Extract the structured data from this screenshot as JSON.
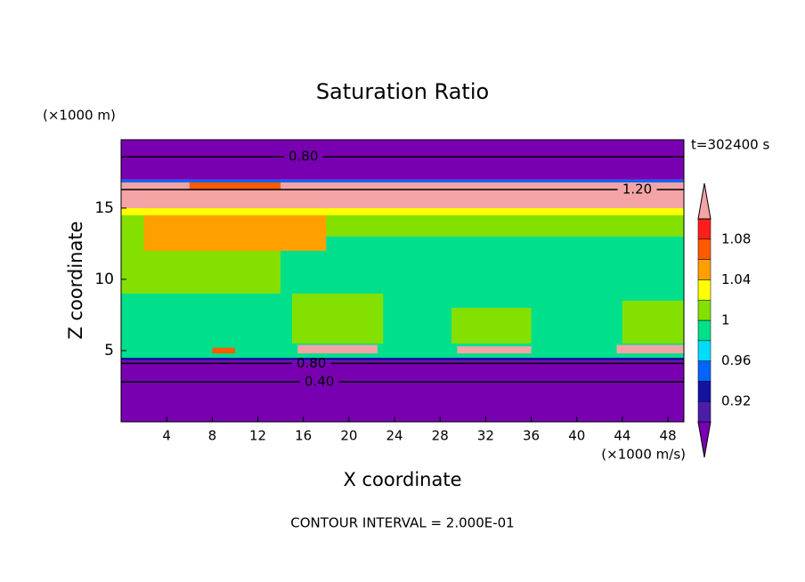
{
  "chart_data": {
    "type": "contour",
    "title": "Saturation Ratio",
    "subtitle": "t=302400 s",
    "x_label": "X coordinate",
    "y_label": "Z coordinate",
    "x_unit": "(×1000 m/s)",
    "y_unit": "(×1000 m)",
    "footer": "CONTOUR INTERVAL = 2.000E-01",
    "xlim": [
      0,
      49.4
    ],
    "ylim": [
      0,
      19.8
    ],
    "xticks": [
      4,
      8,
      12,
      16,
      20,
      24,
      28,
      32,
      36,
      40,
      44,
      48
    ],
    "yticks": [
      5,
      10,
      15
    ],
    "colorbar": {
      "levels": [
        0.9,
        0.92,
        0.94,
        0.96,
        0.98,
        1,
        1.02,
        1.04,
        1.06,
        1.08,
        1.1
      ],
      "colors": [
        "#7800b0",
        "#4a1ea8",
        "#1414a0",
        "#0064ff",
        "#00dcff",
        "#00e08c",
        "#84e000",
        "#ffff00",
        "#ffa000",
        "#ff5a00",
        "#ff1e1e",
        "#f4a4a4"
      ],
      "ticks": [
        0.92,
        0.96,
        1,
        1.04,
        1.08
      ]
    },
    "regions": [
      {
        "x": [
          0,
          49.4
        ],
        "z": [
          0,
          4.3
        ],
        "value": 0.5
      },
      {
        "x": [
          0,
          49.4
        ],
        "z": [
          4.3,
          4.5
        ],
        "value": 0.93
      },
      {
        "x": [
          0,
          49.4
        ],
        "z": [
          4.5,
          14
        ],
        "value": 0.99
      },
      {
        "x": [
          15,
          23
        ],
        "z": [
          5.5,
          9
        ],
        "value": 1.01
      },
      {
        "x": [
          29,
          36
        ],
        "z": [
          5.5,
          8
        ],
        "value": 1.01
      },
      {
        "x": [
          44,
          49.4
        ],
        "z": [
          5.5,
          8.5
        ],
        "value": 1.01
      },
      {
        "x": [
          0,
          14
        ],
        "z": [
          9,
          13
        ],
        "value": 1.01
      },
      {
        "x": [
          0,
          49.4
        ],
        "z": [
          13,
          15
        ],
        "value": 1.01
      },
      {
        "x": [
          2,
          18
        ],
        "z": [
          12,
          15.5
        ],
        "value": 1.05
      },
      {
        "x": [
          0,
          49.4
        ],
        "z": [
          14.5,
          15
        ],
        "value": 1.03
      },
      {
        "x": [
          0,
          49.4
        ],
        "z": [
          15,
          16.8
        ],
        "value": 1.15
      },
      {
        "x": [
          6,
          14
        ],
        "z": [
          16.3,
          17
        ],
        "value": 1.07
      },
      {
        "x": [
          0,
          49.4
        ],
        "z": [
          16.8,
          17
        ],
        "value": 0.95
      },
      {
        "x": [
          0,
          49.4
        ],
        "z": [
          17,
          19.8
        ],
        "value": 0.7
      },
      {
        "x": [
          15.5,
          22.5
        ],
        "z": [
          4.8,
          5.4
        ],
        "value": 1.15
      },
      {
        "x": [
          29.5,
          36
        ],
        "z": [
          4.8,
          5.3
        ],
        "value": 1.15
      },
      {
        "x": [
          43.5,
          49.4
        ],
        "z": [
          4.8,
          5.4
        ],
        "value": 1.15
      },
      {
        "x": [
          8,
          10
        ],
        "z": [
          4.8,
          5.2
        ],
        "value": 1.07
      }
    ],
    "contour_labels": [
      {
        "label": "0.80",
        "x": 16,
        "z": 18.6
      },
      {
        "label": "1.20",
        "x": 45.3,
        "z": 16.3
      },
      {
        "label": "0.80",
        "x": 16.7,
        "z": 4.1
      },
      {
        "label": "0.40",
        "x": 17.4,
        "z": 2.8
      }
    ]
  }
}
